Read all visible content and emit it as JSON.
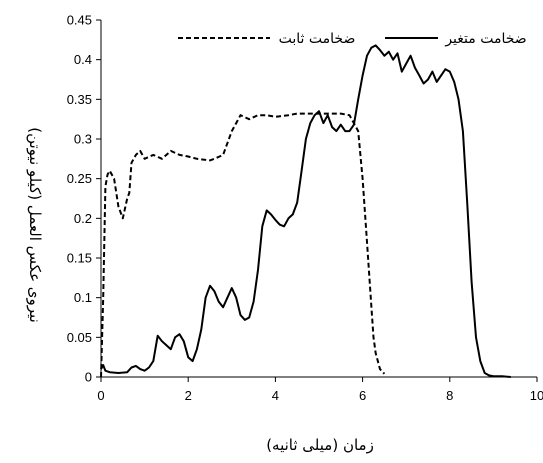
{
  "chart_data": {
    "type": "line",
    "xlabel": "زمان (میلی ثانیه)",
    "ylabel": "نیروی عکس العمل (کیلو نیوتن)",
    "xlim": [
      0,
      10
    ],
    "ylim": [
      0,
      0.45
    ],
    "x_ticks": [
      "0",
      "2",
      "4",
      "6",
      "8",
      "10"
    ],
    "y_ticks": [
      "0",
      "0.05",
      "0.1",
      "0.15",
      "0.2",
      "0.25",
      "0.3",
      "0.35",
      "0.4",
      "0.45"
    ],
    "grid": false,
    "legend_position": "top",
    "series": [
      {
        "name": "ضخامت متغیر",
        "line_style": "solid",
        "color": "#000000",
        "x": [
          0,
          0.05,
          0.1,
          0.2,
          0.4,
          0.6,
          0.7,
          0.8,
          0.9,
          1.0,
          1.1,
          1.2,
          1.3,
          1.4,
          1.6,
          1.7,
          1.8,
          1.9,
          2.0,
          2.1,
          2.2,
          2.3,
          2.4,
          2.5,
          2.6,
          2.7,
          2.8,
          2.9,
          3.0,
          3.1,
          3.2,
          3.3,
          3.4,
          3.5,
          3.6,
          3.7,
          3.8,
          3.9,
          4.0,
          4.1,
          4.2,
          4.3,
          4.4,
          4.5,
          4.6,
          4.7,
          4.8,
          4.9,
          5.0,
          5.1,
          5.2,
          5.3,
          5.4,
          5.5,
          5.6,
          5.7,
          5.8,
          5.9,
          6.0,
          6.1,
          6.2,
          6.3,
          6.4,
          6.5,
          6.6,
          6.7,
          6.8,
          6.9,
          7.0,
          7.1,
          7.2,
          7.3,
          7.4,
          7.5,
          7.6,
          7.7,
          7.8,
          7.9,
          8.0,
          8.1,
          8.2,
          8.3,
          8.4,
          8.5,
          8.6,
          8.7,
          8.8,
          8.9,
          9.0,
          9.2,
          9.4
        ],
        "y": [
          0.01,
          0.015,
          0.008,
          0.006,
          0.005,
          0.006,
          0.012,
          0.014,
          0.01,
          0.008,
          0.012,
          0.02,
          0.052,
          0.045,
          0.035,
          0.05,
          0.054,
          0.045,
          0.025,
          0.02,
          0.035,
          0.06,
          0.1,
          0.115,
          0.108,
          0.095,
          0.088,
          0.1,
          0.112,
          0.1,
          0.078,
          0.072,
          0.075,
          0.095,
          0.135,
          0.19,
          0.21,
          0.205,
          0.198,
          0.192,
          0.19,
          0.2,
          0.205,
          0.22,
          0.26,
          0.3,
          0.32,
          0.33,
          0.335,
          0.32,
          0.33,
          0.315,
          0.31,
          0.318,
          0.31,
          0.31,
          0.318,
          0.35,
          0.38,
          0.405,
          0.415,
          0.418,
          0.412,
          0.405,
          0.41,
          0.4,
          0.408,
          0.385,
          0.395,
          0.405,
          0.39,
          0.38,
          0.37,
          0.375,
          0.385,
          0.372,
          0.38,
          0.388,
          0.385,
          0.372,
          0.35,
          0.31,
          0.22,
          0.12,
          0.05,
          0.02,
          0.005,
          0.002,
          0.001,
          0.001,
          0.0
        ]
      },
      {
        "name": "ضخامت ثابت",
        "line_style": "dashed",
        "color": "#000000",
        "x": [
          0,
          0.05,
          0.1,
          0.15,
          0.2,
          0.3,
          0.35,
          0.4,
          0.5,
          0.6,
          0.65,
          0.7,
          0.8,
          0.9,
          1.0,
          1.2,
          1.4,
          1.6,
          1.8,
          2.0,
          2.2,
          2.5,
          2.6,
          2.8,
          3.0,
          3.1,
          3.2,
          3.4,
          3.6,
          3.8,
          4.0,
          4.3,
          4.5,
          5.0,
          5.5,
          5.7,
          5.9,
          6.0,
          6.1,
          6.2,
          6.25,
          6.3,
          6.4,
          6.5
        ],
        "y": [
          0,
          0.1,
          0.24,
          0.255,
          0.26,
          0.25,
          0.232,
          0.215,
          0.2,
          0.225,
          0.232,
          0.27,
          0.28,
          0.285,
          0.275,
          0.28,
          0.275,
          0.285,
          0.28,
          0.278,
          0.275,
          0.273,
          0.275,
          0.28,
          0.31,
          0.32,
          0.33,
          0.325,
          0.33,
          0.33,
          0.328,
          0.33,
          0.332,
          0.332,
          0.332,
          0.33,
          0.31,
          0.25,
          0.17,
          0.09,
          0.05,
          0.03,
          0.01,
          0.004
        ]
      }
    ]
  }
}
